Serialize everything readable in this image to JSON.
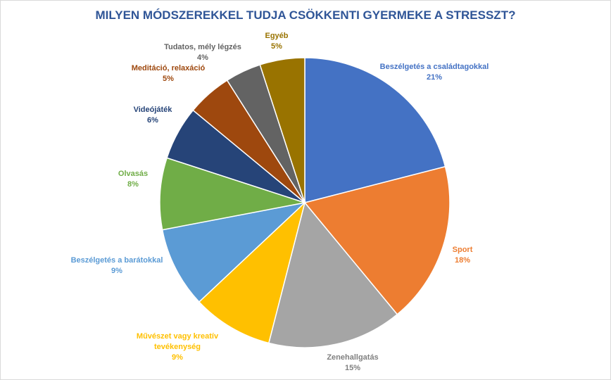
{
  "chart_data": {
    "type": "pie",
    "title": "MILYEN MÓDSZEREKKEL TUDJA CSÖKKENTI GYERMEKE A STRESSZT?",
    "categories": [
      "Beszélgetés a családtagokkal",
      "Sport",
      "Zenehallgatás",
      "Művészet vagy kreatív tevékenység",
      "Beszélgetés a barátokkal",
      "Olvasás",
      "Videójáték",
      "Meditáció, relaxáció",
      "Tudatos,  mély légzés",
      "Egyéb"
    ],
    "values": [
      21,
      18,
      15,
      9,
      9,
      8,
      6,
      5,
      4,
      5
    ],
    "value_labels": [
      "21%",
      "18%",
      "15%",
      "9%",
      "9%",
      "8%",
      "6%",
      "5%",
      "4%",
      "5%"
    ],
    "colors": [
      "#4472C4",
      "#ED7D31",
      "#A5A5A5",
      "#FFC000",
      "#5B9BD5",
      "#70AD47",
      "#264478",
      "#9E480E",
      "#636363",
      "#997300"
    ],
    "label_colors": [
      "#4472C4",
      "#ED7D31",
      "#808080",
      "#FFC000",
      "#5B9BD5",
      "#70AD47",
      "#264478",
      "#9E480E",
      "#636363",
      "#997300"
    ],
    "legend": "none"
  }
}
